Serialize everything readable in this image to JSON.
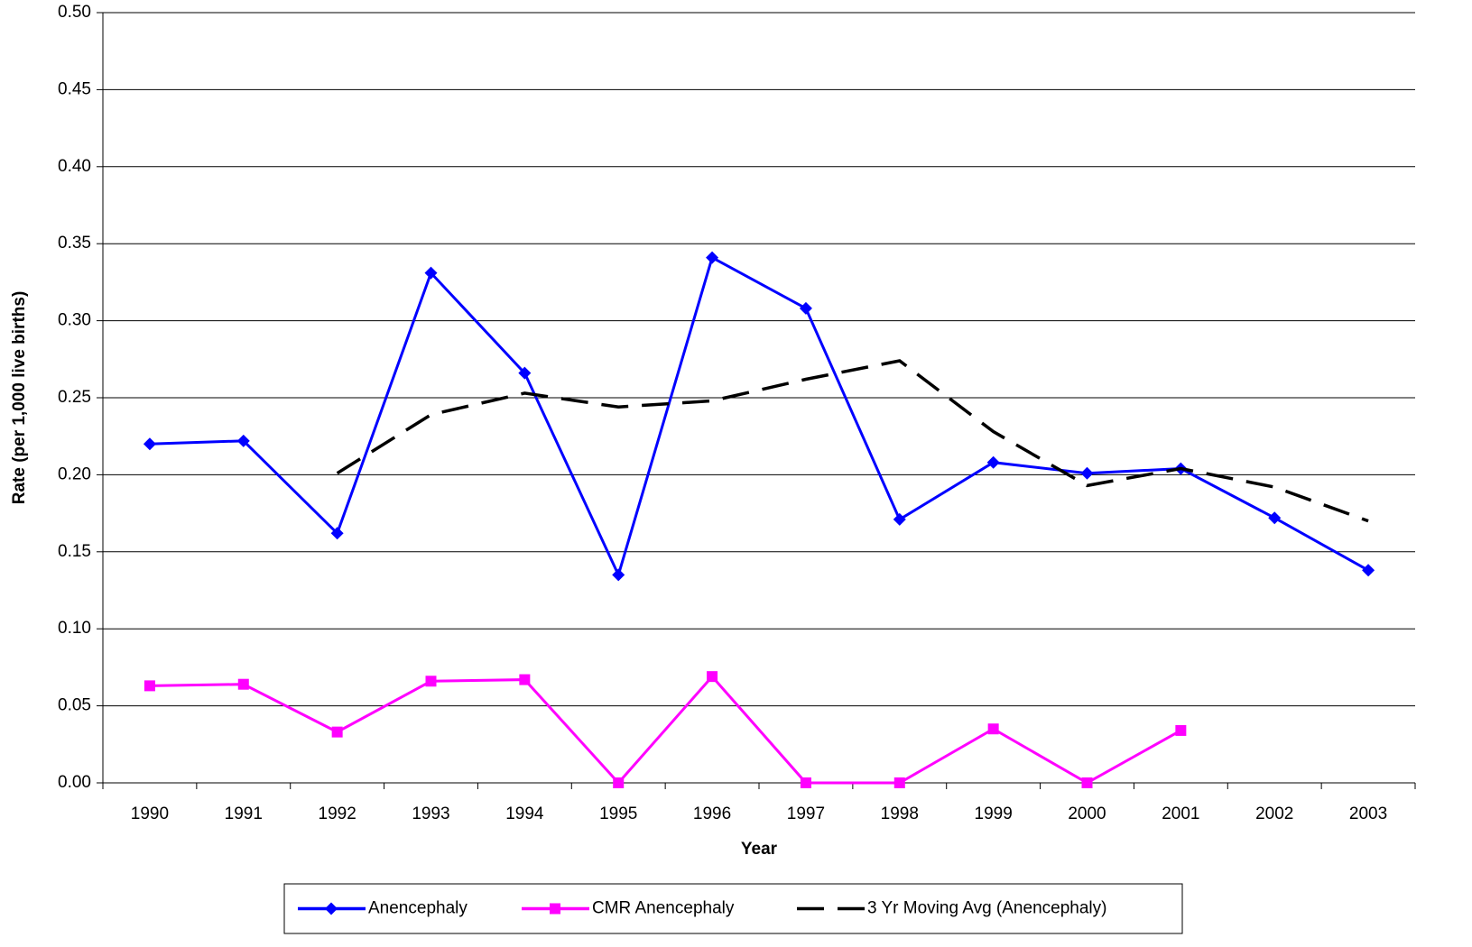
{
  "chart_data": {
    "type": "line",
    "x_label": "Year",
    "y_label": "Rate (per 1,000 live births)",
    "categories": [
      "1990",
      "1991",
      "1992",
      "1993",
      "1994",
      "1995",
      "1996",
      "1997",
      "1998",
      "1999",
      "2000",
      "2001",
      "2002",
      "2003"
    ],
    "series": [
      {
        "name": "Anencephaly",
        "color": "#0000ff",
        "marker": "diamond",
        "dash": "solid",
        "values": [
          0.22,
          0.222,
          0.162,
          0.331,
          0.266,
          0.135,
          0.341,
          0.308,
          0.171,
          0.208,
          0.201,
          0.204,
          0.172,
          0.138
        ]
      },
      {
        "name": "CMR Anencephaly",
        "color": "#ff00ff",
        "marker": "square",
        "dash": "solid",
        "values": [
          0.063,
          0.064,
          0.033,
          0.066,
          0.067,
          0,
          0.069,
          0,
          0,
          0.035,
          0,
          0.034,
          null,
          null
        ]
      },
      {
        "name": "3 Yr Moving Avg (Anencephaly)",
        "color": "#000000",
        "marker": "none",
        "dash": "dashed",
        "values": [
          null,
          null,
          0.201,
          0.239,
          0.253,
          0.244,
          0.248,
          0.262,
          0.274,
          0.228,
          0.193,
          0.204,
          0.192,
          0.17
        ]
      }
    ],
    "ylim": [
      0,
      0.5
    ],
    "yticks": [
      {
        "value": 0,
        "label": "0.00"
      },
      0.05,
      {
        "value": 0.1,
        "label": "0.10"
      },
      0.15,
      {
        "value": 0.2,
        "label": "0.20"
      },
      0.25,
      {
        "value": 0.3,
        "label": "0.30"
      },
      0.35,
      {
        "value": 0.4,
        "label": "0.40"
      },
      0.45,
      {
        "value": 0.5,
        "label": "0.50"
      }
    ],
    "grid": true,
    "legend": "bottom"
  }
}
